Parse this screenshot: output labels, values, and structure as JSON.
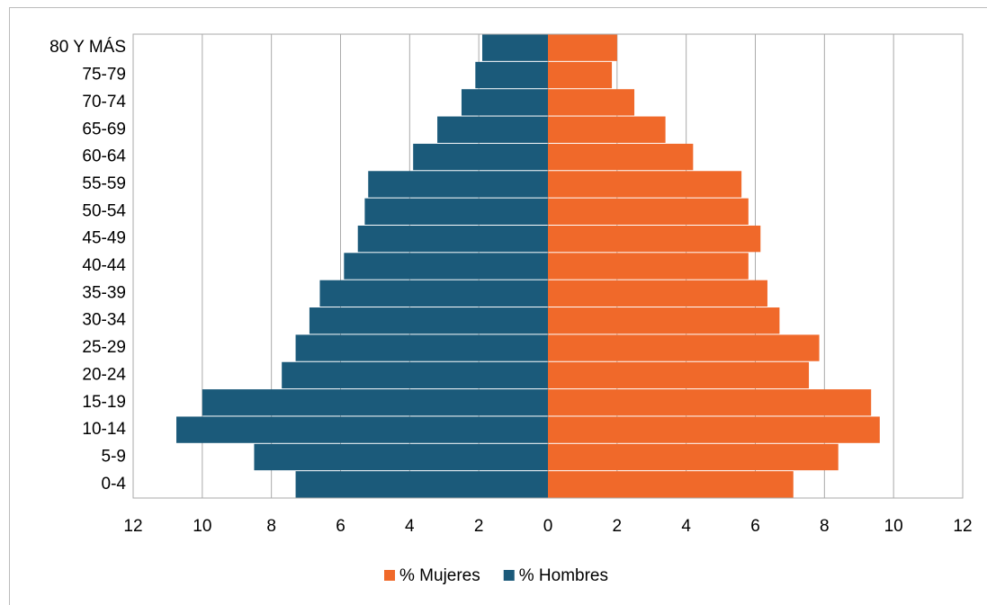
{
  "chart_data": {
    "type": "pyramid",
    "categories": [
      "80 Y MÁS",
      "75-79",
      "70-74",
      "65-69",
      "60-64",
      "55-59",
      "50-54",
      "45-49",
      "40-44",
      "35-39",
      "30-34",
      "25-29",
      "20-24",
      "15-19",
      "10-14",
      "5-9",
      "0-4"
    ],
    "series": [
      {
        "name": "% Mujeres",
        "color": "#f0692a",
        "values": [
          2.0,
          1.85,
          2.5,
          3.4,
          4.2,
          5.6,
          5.8,
          6.15,
          5.8,
          6.35,
          6.7,
          7.85,
          7.55,
          9.35,
          9.6,
          8.4,
          7.1
        ]
      },
      {
        "name": "% Hombres",
        "color": "#1b5a7a",
        "values": [
          -1.9,
          -2.1,
          -2.5,
          -3.2,
          -3.9,
          -5.2,
          -5.3,
          -5.5,
          -5.9,
          -6.6,
          -6.9,
          -7.3,
          -7.7,
          -10.0,
          -10.75,
          -8.5,
          -7.3
        ]
      }
    ],
    "xlim": [
      -12,
      12
    ],
    "xticks": [
      {
        "value": -12,
        "label": "12"
      },
      {
        "value": -10,
        "label": "10"
      },
      {
        "value": -8,
        "label": "8"
      },
      {
        "value": -6,
        "label": "6"
      },
      {
        "value": -4,
        "label": "4"
      },
      {
        "value": -2,
        "label": "2"
      },
      0,
      2,
      4,
      6,
      8,
      10,
      12
    ],
    "grid": true
  }
}
